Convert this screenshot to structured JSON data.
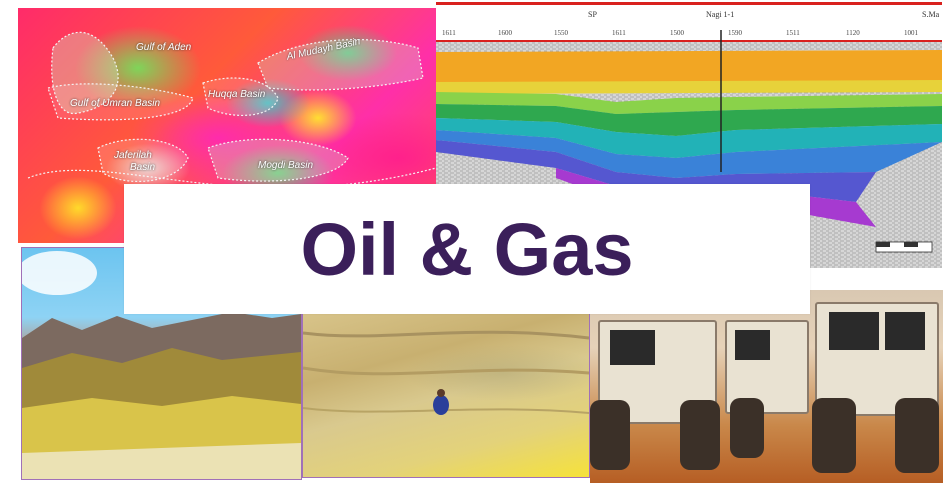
{
  "banner": {
    "title": "Oil & Gas"
  },
  "map": {
    "labels": {
      "top_center": "Gulf of Aden",
      "top_right": "Al Mudayh Basin",
      "left": "Gulf of Umran Basin",
      "center": "Huqqa Basin",
      "lower_left_line1": "Jaferilah",
      "lower_left_line2": "Basin",
      "lower_right": "Mogdi Basin"
    }
  },
  "seismic": {
    "header_left": "SP",
    "header_center": "Nagi 1-1",
    "header_right": "S.Ma",
    "scale_ticks": [
      "1611",
      "1600",
      "1550",
      "1611",
      "1500",
      "1590",
      "1511",
      "1120",
      "1001"
    ]
  },
  "photos": {
    "mountains": "desert-mountains-photo",
    "rock": "sandstone-outcrop-photo",
    "trucks": "vibroseis-trucks-photo"
  },
  "colors": {
    "title": "#3b1f5a",
    "border_purple": "#a070b8",
    "seismic_red_line": "#d9211e"
  }
}
